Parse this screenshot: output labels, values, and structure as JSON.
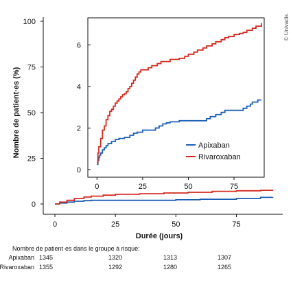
{
  "copyright": "© Univadis",
  "chart_data": [
    {
      "type": "line",
      "role": "main",
      "ylabel": "Nombre de patient·es (%)",
      "xlabel": "Durée (jours)",
      "xlim": [
        0,
        93
      ],
      "ylim": [
        0,
        100
      ],
      "xticks": [
        0,
        25,
        50,
        75
      ],
      "yticks": [
        0,
        25,
        50,
        75,
        100
      ],
      "grid": false,
      "series": [
        {
          "name": "Apixaban",
          "color": "#1a5fb4",
          "step": true,
          "x": [
            0,
            2,
            5,
            8,
            12,
            15,
            25,
            50,
            60,
            75,
            85,
            90
          ],
          "y": [
            0,
            0.5,
            1,
            1.5,
            1.8,
            2,
            2,
            2.3,
            2.6,
            3,
            3.6,
            3.8
          ]
        },
        {
          "name": "Rivaroxaban",
          "color": "#d42a20",
          "step": true,
          "x": [
            0,
            2,
            5,
            8,
            12,
            15,
            20,
            25,
            35,
            45,
            55,
            65,
            75,
            85,
            90
          ],
          "y": [
            0,
            1,
            2,
            3,
            3.8,
            4.3,
            4.8,
            5.3,
            5.6,
            6,
            6.4,
            6.9,
            7.2,
            7.5,
            7.8
          ]
        }
      ]
    },
    {
      "type": "line",
      "role": "inset",
      "xlim": [
        -2,
        93
      ],
      "ylim": [
        -0.1,
        7.3
      ],
      "xticks": [
        0,
        25,
        50,
        75
      ],
      "yticks": [
        0,
        2,
        4,
        6
      ],
      "legend": "bottom-right",
      "series": [
        {
          "name": "Apixaban",
          "color": "#1a5fb4",
          "step": true,
          "x": [
            0,
            0.5,
            1,
            1.5,
            2,
            3,
            4,
            5,
            6,
            8,
            10,
            12,
            15,
            18,
            20,
            22,
            25,
            32,
            34,
            36,
            38,
            40,
            45,
            60,
            62,
            65,
            68,
            70,
            80,
            82,
            84,
            85,
            88,
            90
          ],
          "y": [
            0.25,
            0.45,
            0.6,
            0.7,
            0.8,
            0.95,
            1.05,
            1.15,
            1.25,
            1.35,
            1.45,
            1.5,
            1.55,
            1.65,
            1.75,
            1.8,
            1.9,
            2.0,
            2.1,
            2.2,
            2.25,
            2.3,
            2.35,
            2.45,
            2.55,
            2.65,
            2.75,
            2.85,
            2.95,
            3.05,
            3.15,
            3.25,
            3.35,
            3.35
          ]
        },
        {
          "name": "Rivaroxaban",
          "color": "#d42a20",
          "step": true,
          "x": [
            0,
            0.5,
            1,
            2,
            3,
            4,
            5,
            6,
            7,
            8,
            9,
            10,
            11,
            12,
            13,
            14,
            15,
            16,
            17,
            18,
            19,
            20,
            21,
            22,
            23,
            24,
            28,
            30,
            33,
            35,
            40,
            45,
            48,
            50,
            53,
            55,
            58,
            60,
            63,
            65,
            68,
            70,
            72,
            75,
            78,
            80,
            82,
            85,
            87,
            90
          ],
          "y": [
            0.35,
            0.8,
            1.1,
            1.5,
            1.9,
            2.1,
            2.4,
            2.6,
            2.8,
            2.9,
            3.05,
            3.2,
            3.3,
            3.4,
            3.5,
            3.6,
            3.65,
            3.75,
            3.9,
            4.0,
            4.15,
            4.3,
            4.45,
            4.6,
            4.7,
            4.8,
            4.9,
            5.0,
            5.1,
            5.2,
            5.3,
            5.35,
            5.45,
            5.55,
            5.65,
            5.75,
            5.85,
            5.95,
            6.05,
            6.15,
            6.25,
            6.35,
            6.4,
            6.5,
            6.55,
            6.6,
            6.7,
            6.8,
            6.9,
            7.05
          ]
        }
      ]
    }
  ],
  "risk_table": {
    "title": "Nombre de patient·es dans le groupe à risque:",
    "rows": [
      {
        "label": "Apixaban",
        "values": [
          "1345",
          "1320",
          "1313",
          "1307"
        ]
      },
      {
        "label": "Rivaroxaban",
        "values": [
          "1355",
          "1292",
          "1280",
          "1265"
        ]
      }
    ]
  }
}
